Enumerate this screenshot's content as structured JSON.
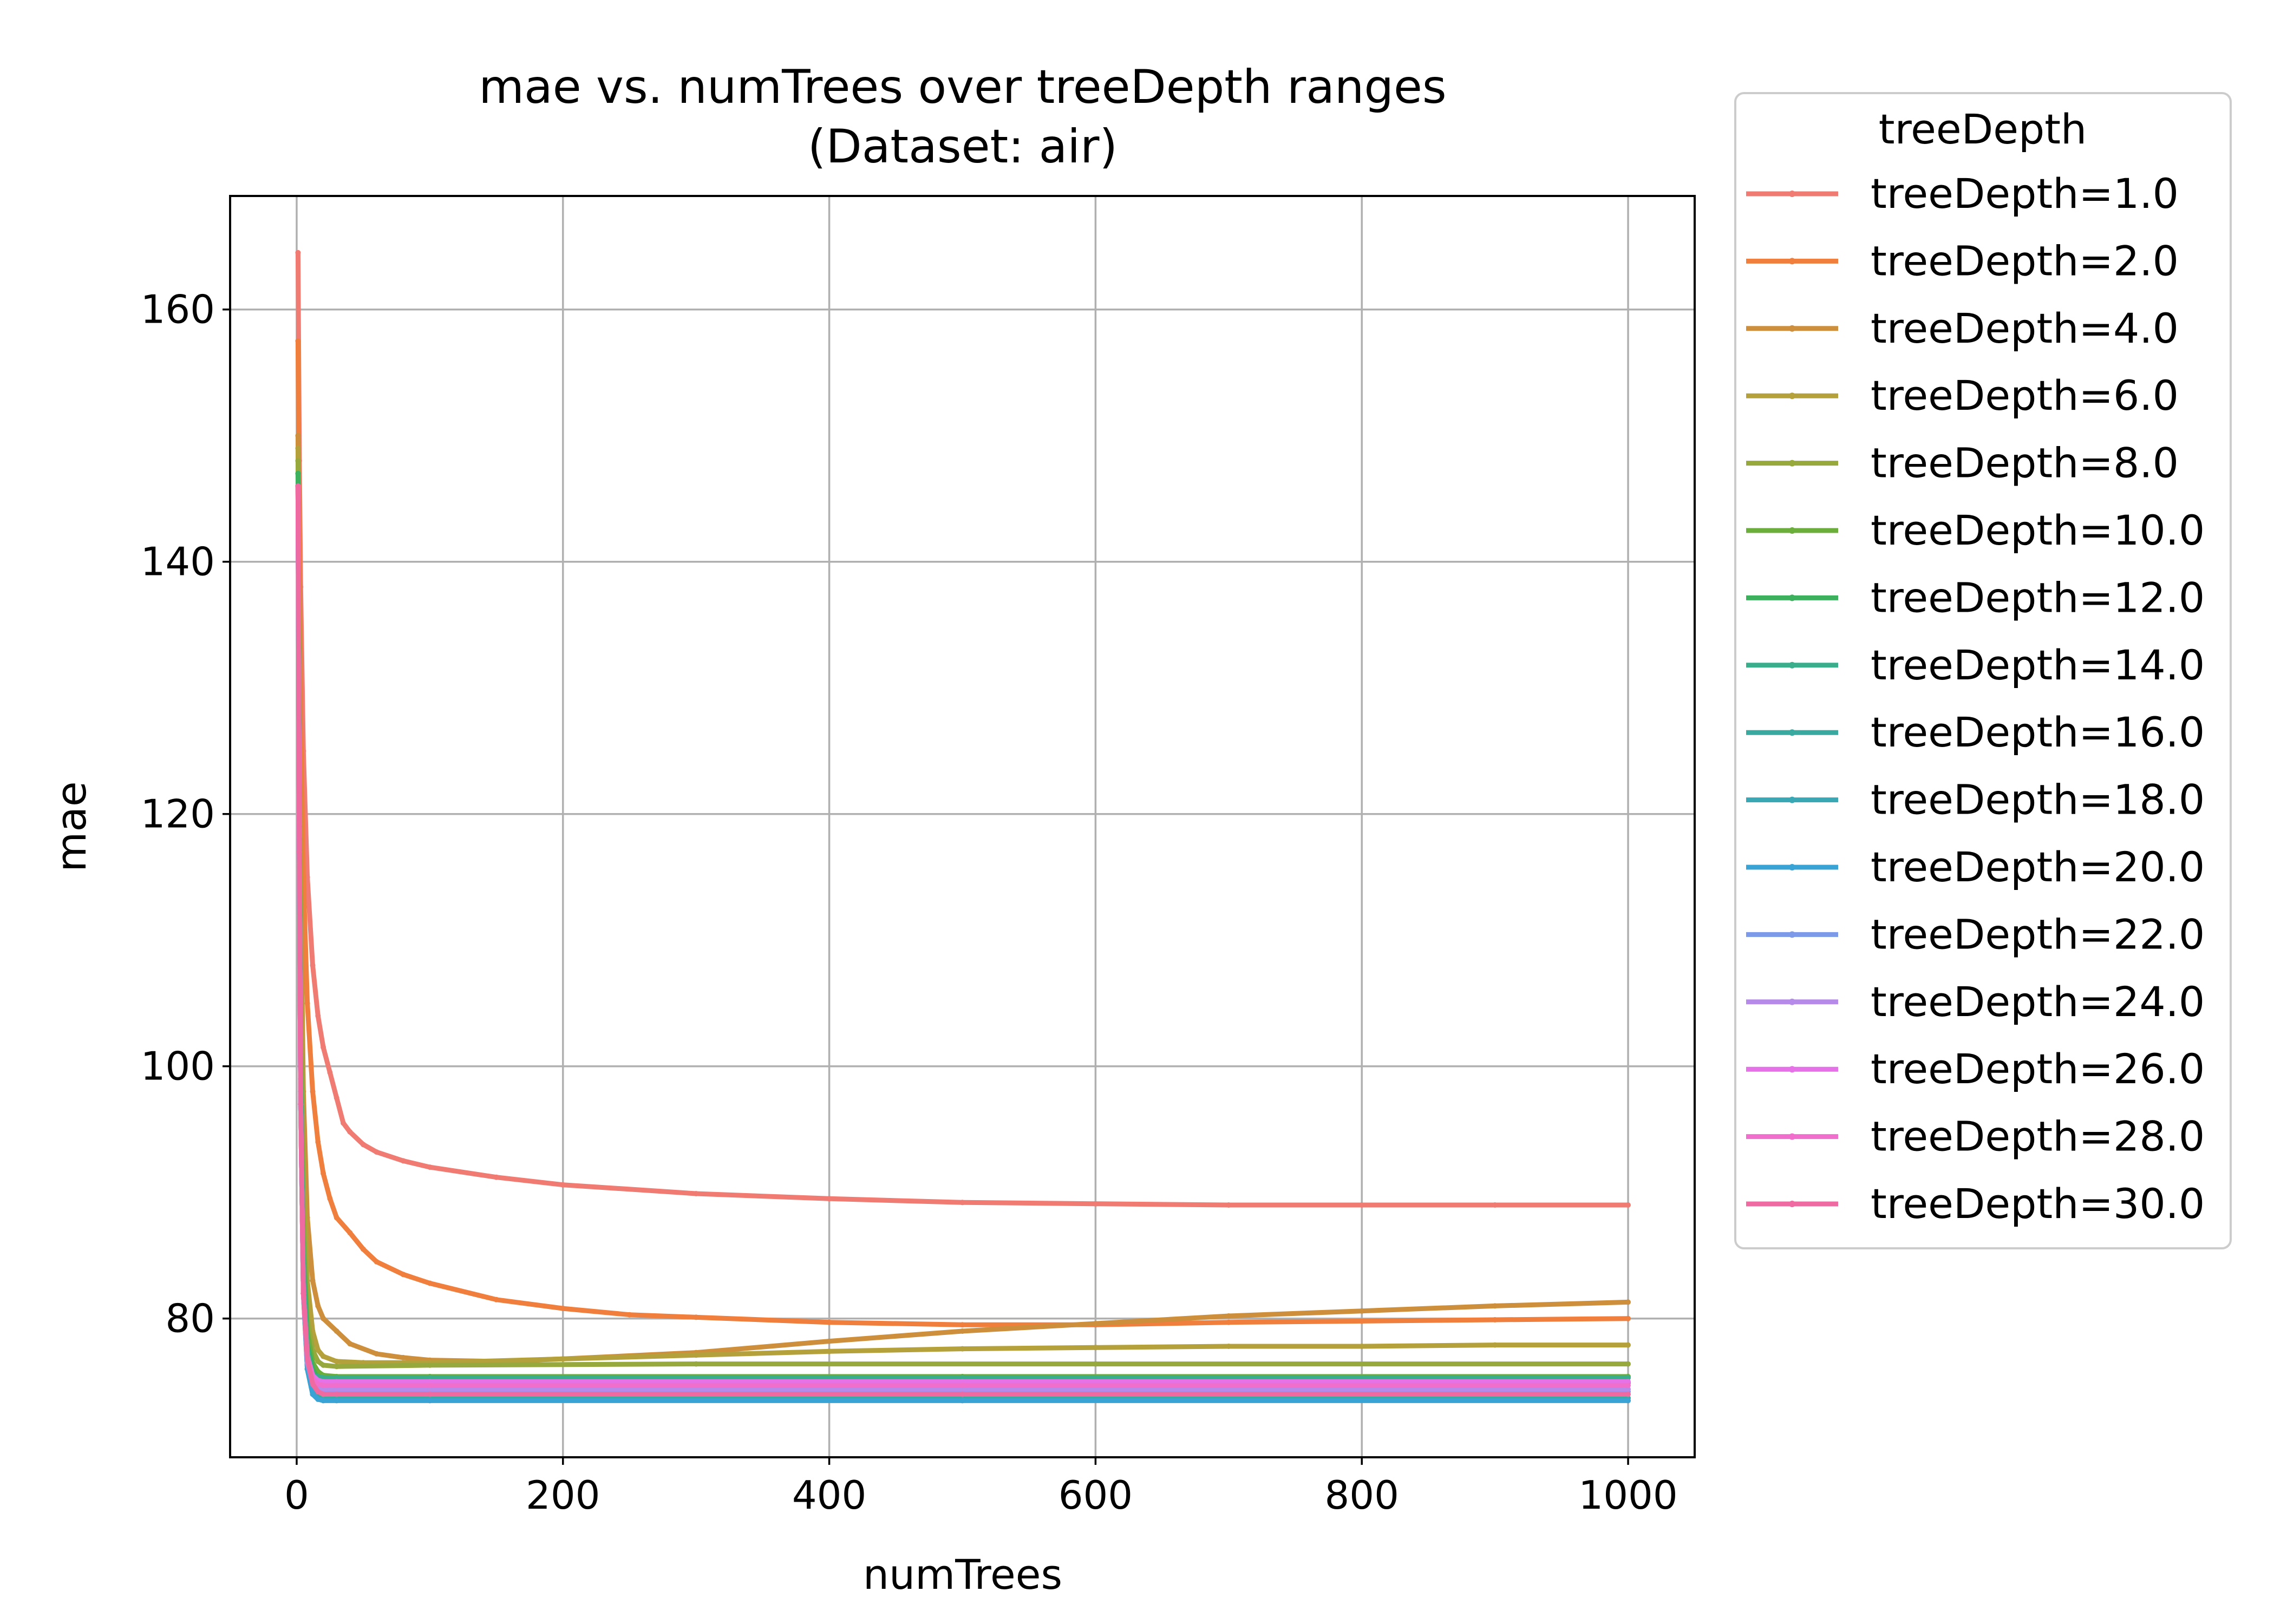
{
  "chart_data": {
    "type": "line",
    "title": "mae vs. numTrees over treeDepth ranges",
    "subtitle": "(Dataset: air)",
    "xlabel": "numTrees",
    "ylabel": "mae",
    "xlim": [
      -50,
      1050
    ],
    "ylim": [
      69,
      169
    ],
    "xticks": [
      0,
      200,
      400,
      600,
      800,
      1000
    ],
    "yticks": [
      80,
      100,
      120,
      140,
      160
    ],
    "grid": true,
    "legend": {
      "title": "treeDepth",
      "placement": "outside-right"
    },
    "series": [
      {
        "name": "treeDepth=1.0",
        "color": "#f07b72",
        "points": [
          [
            1,
            164.5
          ],
          [
            2,
            148
          ],
          [
            3,
            138
          ],
          [
            5,
            125
          ],
          [
            8,
            115
          ],
          [
            12,
            108
          ],
          [
            16,
            104
          ],
          [
            20,
            101.5
          ],
          [
            25,
            99.5
          ],
          [
            30,
            97.5
          ],
          [
            35,
            95.5
          ],
          [
            40,
            94.8
          ],
          [
            50,
            93.8
          ],
          [
            60,
            93.2
          ],
          [
            80,
            92.5
          ],
          [
            100,
            92.0
          ],
          [
            150,
            91.2
          ],
          [
            200,
            90.6
          ],
          [
            300,
            89.9
          ],
          [
            400,
            89.5
          ],
          [
            500,
            89.2
          ],
          [
            600,
            89.1
          ],
          [
            700,
            89.0
          ],
          [
            800,
            89.0
          ],
          [
            900,
            89.0
          ],
          [
            1000,
            89.0
          ]
        ]
      },
      {
        "name": "treeDepth=2.0",
        "color": "#f07e3c",
        "points": [
          [
            1,
            157.5
          ],
          [
            2,
            140
          ],
          [
            3,
            128
          ],
          [
            5,
            115
          ],
          [
            8,
            105
          ],
          [
            12,
            98
          ],
          [
            16,
            94
          ],
          [
            20,
            91.5
          ],
          [
            25,
            89.5
          ],
          [
            30,
            88
          ],
          [
            40,
            86.8
          ],
          [
            50,
            85.5
          ],
          [
            60,
            84.5
          ],
          [
            80,
            83.5
          ],
          [
            100,
            82.8
          ],
          [
            150,
            81.5
          ],
          [
            200,
            80.8
          ],
          [
            250,
            80.3
          ],
          [
            300,
            80.1
          ],
          [
            400,
            79.7
          ],
          [
            500,
            79.5
          ],
          [
            600,
            79.5
          ],
          [
            700,
            79.7
          ],
          [
            800,
            79.8
          ],
          [
            900,
            79.9
          ],
          [
            1000,
            80.0
          ]
        ]
      },
      {
        "name": "treeDepth=4.0",
        "color": "#cd8f3c",
        "points": [
          [
            1,
            150
          ],
          [
            2,
            130
          ],
          [
            3,
            115
          ],
          [
            5,
            98
          ],
          [
            8,
            88
          ],
          [
            12,
            83
          ],
          [
            16,
            81
          ],
          [
            20,
            80
          ],
          [
            30,
            79
          ],
          [
            40,
            78
          ],
          [
            60,
            77.2
          ],
          [
            80,
            76.9
          ],
          [
            100,
            76.7
          ],
          [
            150,
            76.6
          ],
          [
            200,
            76.8
          ],
          [
            300,
            77.3
          ],
          [
            400,
            78.2
          ],
          [
            500,
            79.0
          ],
          [
            600,
            79.6
          ],
          [
            700,
            80.2
          ],
          [
            800,
            80.6
          ],
          [
            900,
            81.0
          ],
          [
            1000,
            81.3
          ]
        ]
      },
      {
        "name": "treeDepth=6.0",
        "color": "#b5a13c",
        "points": [
          [
            1,
            149
          ],
          [
            2,
            125
          ],
          [
            3,
            108
          ],
          [
            5,
            92
          ],
          [
            8,
            83
          ],
          [
            12,
            79
          ],
          [
            16,
            77.5
          ],
          [
            20,
            77
          ],
          [
            30,
            76.6
          ],
          [
            50,
            76.5
          ],
          [
            100,
            76.5
          ],
          [
            200,
            76.8
          ],
          [
            300,
            77.1
          ],
          [
            400,
            77.4
          ],
          [
            500,
            77.6
          ],
          [
            600,
            77.7
          ],
          [
            700,
            77.8
          ],
          [
            800,
            77.8
          ],
          [
            900,
            77.9
          ],
          [
            1000,
            77.9
          ]
        ]
      },
      {
        "name": "treeDepth=8.0",
        "color": "#97a83c",
        "points": [
          [
            1,
            148
          ],
          [
            2,
            122
          ],
          [
            3,
            104
          ],
          [
            5,
            88
          ],
          [
            8,
            80
          ],
          [
            12,
            77.5
          ],
          [
            16,
            76.6
          ],
          [
            20,
            76.3
          ],
          [
            30,
            76.2
          ],
          [
            100,
            76.3
          ],
          [
            300,
            76.4
          ],
          [
            600,
            76.4
          ],
          [
            1000,
            76.4
          ]
        ]
      },
      {
        "name": "treeDepth=10.0",
        "color": "#6cae3c",
        "points": [
          [
            1,
            147
          ],
          [
            2,
            120
          ],
          [
            3,
            102
          ],
          [
            5,
            86
          ],
          [
            8,
            79
          ],
          [
            12,
            76.5
          ],
          [
            16,
            75.8
          ],
          [
            20,
            75.5
          ],
          [
            30,
            75.4
          ],
          [
            100,
            75.4
          ],
          [
            500,
            75.4
          ],
          [
            1000,
            75.4
          ]
        ]
      },
      {
        "name": "treeDepth=12.0",
        "color": "#3cb05c",
        "points": [
          [
            1,
            147
          ],
          [
            2,
            119
          ],
          [
            3,
            100
          ],
          [
            5,
            85
          ],
          [
            8,
            78
          ],
          [
            12,
            76
          ],
          [
            16,
            75.2
          ],
          [
            20,
            75.0
          ],
          [
            30,
            74.9
          ],
          [
            100,
            74.9
          ],
          [
            500,
            74.9
          ],
          [
            1000,
            74.9
          ]
        ]
      },
      {
        "name": "treeDepth=14.0",
        "color": "#3aad8c",
        "points": [
          [
            1,
            146
          ],
          [
            2,
            118
          ],
          [
            3,
            99
          ],
          [
            5,
            84
          ],
          [
            8,
            77.5
          ],
          [
            12,
            75.5
          ],
          [
            16,
            75.4
          ],
          [
            20,
            75.3
          ],
          [
            30,
            75.3
          ],
          [
            100,
            75.3
          ],
          [
            500,
            75.3
          ],
          [
            1000,
            75.3
          ]
        ]
      },
      {
        "name": "treeDepth=16.0",
        "color": "#3aaaa0",
        "points": [
          [
            1,
            146
          ],
          [
            2,
            118
          ],
          [
            3,
            98
          ],
          [
            5,
            83
          ],
          [
            8,
            76.5
          ],
          [
            12,
            74.5
          ],
          [
            16,
            74.0
          ],
          [
            20,
            73.8
          ],
          [
            30,
            73.7
          ],
          [
            100,
            73.7
          ],
          [
            500,
            73.7
          ],
          [
            1000,
            73.7
          ]
        ]
      },
      {
        "name": "treeDepth=18.0",
        "color": "#3aa8b4",
        "points": [
          [
            1,
            146
          ],
          [
            2,
            117
          ],
          [
            3,
            97
          ],
          [
            5,
            82
          ],
          [
            8,
            76
          ],
          [
            12,
            74
          ],
          [
            16,
            73.6
          ],
          [
            20,
            73.5
          ],
          [
            30,
            73.5
          ],
          [
            100,
            73.5
          ],
          [
            500,
            73.5
          ],
          [
            1000,
            73.5
          ]
        ]
      },
      {
        "name": "treeDepth=20.0",
        "color": "#3aa3d6",
        "points": [
          [
            1,
            146
          ],
          [
            2,
            117
          ],
          [
            3,
            97
          ],
          [
            5,
            82
          ],
          [
            8,
            76
          ],
          [
            12,
            74
          ],
          [
            16,
            73.6
          ],
          [
            20,
            73.5
          ],
          [
            30,
            73.5
          ],
          [
            100,
            73.5
          ],
          [
            500,
            73.5
          ],
          [
            1000,
            73.5
          ]
        ]
      },
      {
        "name": "treeDepth=22.0",
        "color": "#7c9ae8",
        "points": [
          [
            1,
            146
          ],
          [
            2,
            117
          ],
          [
            3,
            97
          ],
          [
            5,
            82
          ],
          [
            8,
            76.5
          ],
          [
            12,
            74.8
          ],
          [
            16,
            74.3
          ],
          [
            20,
            74.2
          ],
          [
            30,
            74.2
          ],
          [
            100,
            74.2
          ],
          [
            500,
            74.2
          ],
          [
            1000,
            74.2
          ]
        ]
      },
      {
        "name": "treeDepth=24.0",
        "color": "#b58ae8",
        "points": [
          [
            1,
            146
          ],
          [
            2,
            117
          ],
          [
            3,
            97
          ],
          [
            5,
            82
          ],
          [
            8,
            76.5
          ],
          [
            12,
            75
          ],
          [
            16,
            74.5
          ],
          [
            20,
            74.4
          ],
          [
            30,
            74.4
          ],
          [
            100,
            74.4
          ],
          [
            500,
            74.4
          ],
          [
            1000,
            74.4
          ]
        ]
      },
      {
        "name": "treeDepth=26.0",
        "color": "#e672e8",
        "points": [
          [
            1,
            146
          ],
          [
            2,
            117
          ],
          [
            3,
            97
          ],
          [
            5,
            82
          ],
          [
            8,
            77
          ],
          [
            12,
            75.5
          ],
          [
            16,
            75.1
          ],
          [
            20,
            75.0
          ],
          [
            30,
            75.0
          ],
          [
            100,
            75.0
          ],
          [
            500,
            75.0
          ],
          [
            1000,
            75.0
          ]
        ]
      },
      {
        "name": "treeDepth=28.0",
        "color": "#f06ecc",
        "points": [
          [
            1,
            146
          ],
          [
            2,
            117
          ],
          [
            3,
            97
          ],
          [
            5,
            82
          ],
          [
            8,
            77
          ],
          [
            12,
            75.2
          ],
          [
            16,
            74.8
          ],
          [
            20,
            74.7
          ],
          [
            30,
            74.7
          ],
          [
            100,
            74.7
          ],
          [
            500,
            74.7
          ],
          [
            1000,
            74.7
          ]
        ]
      },
      {
        "name": "treeDepth=30.0",
        "color": "#f06aa2",
        "points": [
          [
            1,
            146
          ],
          [
            2,
            117
          ],
          [
            3,
            97
          ],
          [
            5,
            82
          ],
          [
            8,
            76.8
          ],
          [
            12,
            74.8
          ],
          [
            16,
            74.2
          ],
          [
            20,
            74.0
          ],
          [
            30,
            74.0
          ],
          [
            100,
            74.0
          ],
          [
            500,
            74.0
          ],
          [
            1000,
            74.0
          ]
        ]
      }
    ]
  }
}
